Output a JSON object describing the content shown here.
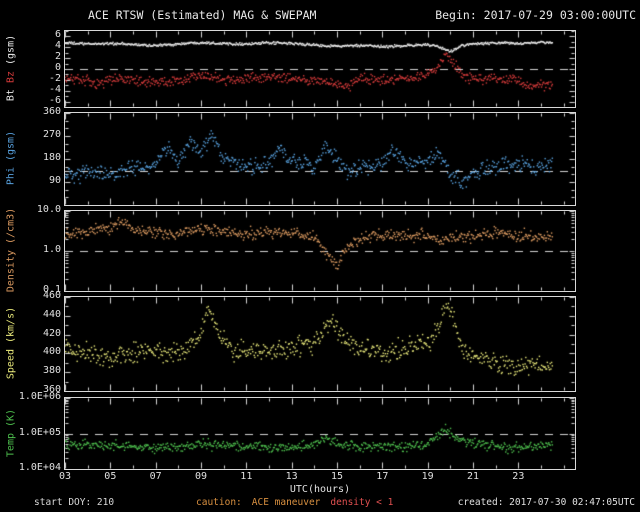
{
  "header": {
    "title": "ACE RTSW (Estimated) MAG & SWEPAM",
    "begin": "Begin: 2017-07-29 03:00:00UTC"
  },
  "footer": {
    "start_doy": "start DOY: 210",
    "caution": "caution:",
    "caution_detail": "ACE maneuver",
    "density_warning": "density < 1",
    "created": "created: 2017-07-30 02:47:05UTC"
  },
  "colors": {
    "frame": "#d8d8d8",
    "bt": "#f0f0f0",
    "bz": "#d43a3a",
    "phi": "#57a0dd",
    "density": "#db9a60",
    "speed": "#e8e87a",
    "temp": "#4ec04e",
    "caution": "#d99040",
    "warning": "#e05050"
  },
  "x_axis": {
    "label": "UTC(hours)",
    "range": [
      3,
      25.5
    ],
    "tick_hours": [
      3,
      5,
      7,
      9,
      11,
      13,
      15,
      17,
      19,
      21,
      23
    ],
    "tick_labels": [
      "03",
      "05",
      "07",
      "09",
      "11",
      "13",
      "15",
      "17",
      "19",
      "21",
      "23"
    ],
    "minor_tick_step": 1
  },
  "panels": [
    {
      "name": "bt-bz",
      "scale": "linear",
      "ylim": [
        -7,
        7
      ],
      "minor_step": 1,
      "dashed": [
        0
      ],
      "yticks": [
        {
          "v": 6,
          "label": "6"
        },
        {
          "v": 4,
          "label": "4"
        },
        {
          "v": 2,
          "label": "2"
        },
        {
          "v": 0,
          "label": "0"
        },
        {
          "v": -2,
          "label": "-2"
        },
        {
          "v": -4,
          "label": "-4"
        },
        {
          "v": -6,
          "label": "-6"
        }
      ],
      "axis_parts": [
        {
          "text": "Bt",
          "color": "#e8e8e8"
        },
        {
          "text": "Bz",
          "color": "#d43a3a"
        },
        {
          "text": "(gsm)",
          "color": "#e8e8e8"
        }
      ]
    },
    {
      "name": "phi",
      "scale": "linear",
      "ylim": [
        0,
        360
      ],
      "minor_step": 30,
      "dashed": [
        135
      ],
      "yticks": [
        {
          "v": 360,
          "label": "360"
        },
        {
          "v": 270,
          "label": "270"
        },
        {
          "v": 180,
          "label": "180"
        },
        {
          "v": 90,
          "label": "90"
        }
      ],
      "axis_parts": [
        {
          "text": "Phi (gsm)",
          "color": "#57a0dd"
        }
      ]
    },
    {
      "name": "density",
      "scale": "log",
      "ylim": [
        0.1,
        10
      ],
      "dashed": [
        1
      ],
      "yticks": [
        {
          "v": 10,
          "label": "10.0"
        },
        {
          "v": 1,
          "label": "1.0"
        },
        {
          "v": 0.1,
          "label": "0.1"
        }
      ],
      "axis_parts": [
        {
          "text": "Density (/cm3)",
          "color": "#db9a60"
        }
      ]
    },
    {
      "name": "speed",
      "scale": "linear",
      "ylim": [
        360,
        460
      ],
      "minor_step": 10,
      "dashed": [],
      "yticks": [
        {
          "v": 460,
          "label": "460"
        },
        {
          "v": 440,
          "label": "440"
        },
        {
          "v": 420,
          "label": "420"
        },
        {
          "v": 400,
          "label": "400"
        },
        {
          "v": 380,
          "label": "380"
        },
        {
          "v": 360,
          "label": "360"
        }
      ],
      "axis_parts": [
        {
          "text": "Speed (km/s)",
          "color": "#e8e87a"
        }
      ]
    },
    {
      "name": "temp",
      "scale": "log",
      "ylim": [
        10000,
        1000000
      ],
      "dashed": [
        100000
      ],
      "yticks": [
        {
          "v": 1000000,
          "label": "1.0E+06"
        },
        {
          "v": 100000,
          "label": "1.0E+05"
        },
        {
          "v": 10000,
          "label": "1.0E+04"
        }
      ],
      "axis_parts": [
        {
          "text": "Temp (K)",
          "color": "#4ec04e"
        }
      ]
    }
  ],
  "chart_data": {
    "type": "scatter",
    "title": "ACE RTSW (Estimated) MAG & SWEPAM",
    "xlabel": "UTC(hours)",
    "x_units": "hours UTC, 2017-07-29 03:00 to ~2017-07-30 01:00",
    "series": [
      {
        "name": "Bt",
        "panel": 0,
        "color": "#f0f0f0",
        "spread": 0.35,
        "x": [
          3,
          4,
          5,
          6,
          7,
          8,
          9,
          10,
          11,
          12,
          13,
          14,
          15,
          16,
          17,
          18,
          19,
          19.5,
          20,
          20.5,
          21,
          22,
          23,
          24,
          24.5
        ],
        "y": [
          4.8,
          4.6,
          4.7,
          4.5,
          4.3,
          4.6,
          4.9,
          4.7,
          4.6,
          4.8,
          4.7,
          4.4,
          4.2,
          4.3,
          4.1,
          4.3,
          4.5,
          4.0,
          3.2,
          4.3,
          4.6,
          4.8,
          4.7,
          4.9,
          4.8
        ]
      },
      {
        "name": "Bz",
        "panel": 0,
        "color": "#d43a3a",
        "spread": 1.4,
        "x": [
          3,
          4,
          4.5,
          5,
          6,
          7,
          8,
          9,
          10,
          11,
          12,
          13,
          14,
          15,
          15.5,
          16,
          17,
          18,
          19,
          19.5,
          19.8,
          20.2,
          20.5,
          21,
          22,
          23,
          23.5,
          24,
          24.5
        ],
        "y": [
          -1.5,
          -2.2,
          -3.0,
          -1.8,
          -2.0,
          -2.5,
          -2.2,
          -1.2,
          -2.0,
          -1.6,
          -1.4,
          -1.8,
          -2.2,
          -2.6,
          -3.2,
          -1.8,
          -2.0,
          -1.8,
          -1.2,
          0.5,
          2.3,
          1.0,
          -1.2,
          -2.0,
          -1.6,
          -2.2,
          -3.5,
          -2.8,
          -3.2
        ]
      },
      {
        "name": "Phi",
        "panel": 1,
        "color": "#57a0dd",
        "spread": 45,
        "x": [
          3,
          4,
          5,
          6,
          7,
          7.5,
          8,
          8.5,
          9,
          9.5,
          10,
          11,
          12,
          12.5,
          13,
          14,
          14.5,
          15,
          15.5,
          16,
          17,
          17.5,
          18,
          19,
          19.5,
          20,
          20.5,
          21,
          21.5,
          22,
          23,
          24,
          24.5
        ],
        "y": [
          115,
          130,
          120,
          140,
          160,
          230,
          170,
          250,
          200,
          265,
          180,
          150,
          160,
          225,
          170,
          150,
          230,
          180,
          120,
          150,
          160,
          220,
          170,
          170,
          200,
          120,
          95,
          115,
          140,
          150,
          160,
          150,
          165
        ]
      },
      {
        "name": "Density",
        "panel": 2,
        "color": "#db9a60",
        "spread": 0.22,
        "x": [
          3,
          4,
          5,
          5.5,
          6,
          7,
          8,
          9,
          10,
          11,
          12,
          13,
          14,
          14.5,
          15,
          15.5,
          16,
          17,
          18,
          19,
          19.5,
          20,
          21,
          22,
          23,
          24,
          24.5
        ],
        "y": [
          2.5,
          3.0,
          3.8,
          5.0,
          3.5,
          3.0,
          2.5,
          3.8,
          3.0,
          2.6,
          3.0,
          2.8,
          2.2,
          0.9,
          0.4,
          1.2,
          2.0,
          2.5,
          2.2,
          2.5,
          1.8,
          2.0,
          2.5,
          2.8,
          2.5,
          2.2,
          2.4
        ]
      },
      {
        "name": "Speed",
        "panel": 3,
        "color": "#e8e87a",
        "spread": 16,
        "x": [
          3,
          4,
          5,
          6,
          7,
          8,
          9,
          9.3,
          9.6,
          10,
          10.5,
          11,
          12,
          13,
          14,
          14.8,
          15.2,
          16,
          17,
          18,
          19,
          19.5,
          19.8,
          20.1,
          20.4,
          21,
          22,
          23,
          24,
          24.5
        ],
        "y": [
          405,
          400,
          396,
          400,
          404,
          400,
          420,
          448,
          430,
          415,
          400,
          405,
          400,
          405,
          410,
          438,
          415,
          405,
          400,
          405,
          410,
          425,
          458,
          440,
          410,
          396,
          390,
          386,
          390,
          387
        ]
      },
      {
        "name": "Temp",
        "panel": 4,
        "color": "#4ec04e",
        "spread": 0.2,
        "x": [
          3,
          4,
          5,
          6,
          7,
          8,
          9,
          10,
          11,
          12,
          13,
          14,
          14.5,
          15,
          16,
          17,
          18,
          19,
          19.8,
          20.2,
          21,
          22,
          23,
          24,
          24.5
        ],
        "y": [
          50000,
          47000,
          45000,
          42000,
          40000,
          41000,
          50000,
          45000,
          42000,
          40000,
          42000,
          45000,
          80000,
          50000,
          40000,
          45000,
          40000,
          50000,
          120000,
          80000,
          50000,
          45000,
          40000,
          45000,
          42000
        ]
      }
    ]
  }
}
